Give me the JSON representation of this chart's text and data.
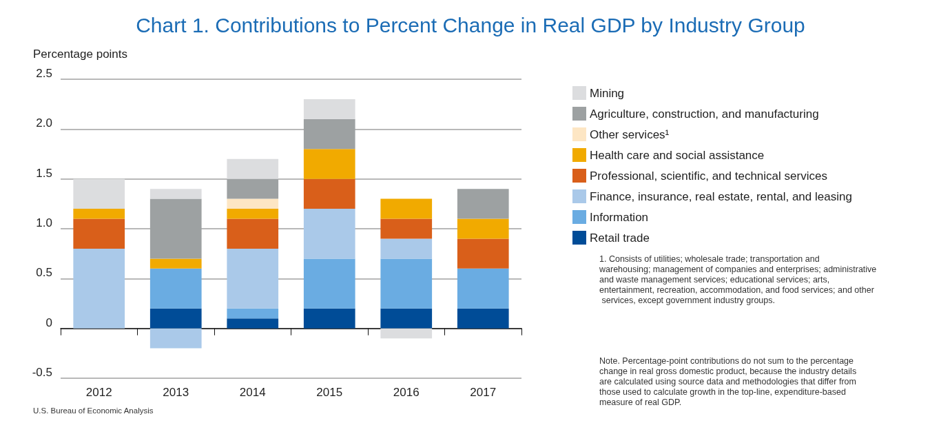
{
  "chart_data": {
    "type": "bar",
    "stacked": true,
    "title": "Chart 1. Contributions to Percent Change in Real GDP by Industry Group",
    "ylabel": "Percentage points",
    "categories": [
      "2012",
      "2013",
      "2014",
      "2015",
      "2016",
      "2017"
    ],
    "series": [
      {
        "name": "Retail trade",
        "color": "#004c97",
        "values": [
          0,
          0.2,
          0.1,
          0.2,
          0.2,
          0.2
        ]
      },
      {
        "name": "Information",
        "color": "#6aace2",
        "values": [
          0,
          0.4,
          0.1,
          0.5,
          0.5,
          0.4
        ]
      },
      {
        "name": "Finance, insurance, real estate, rental, and leasing",
        "color": "#aac9e9",
        "values": [
          0.8,
          -0.2,
          0.6,
          0.5,
          0.2,
          0
        ]
      },
      {
        "name": "Professional, scientific, and technical services",
        "color": "#d95f1a",
        "values": [
          0.3,
          0,
          0.3,
          0.3,
          0.2,
          0.3
        ]
      },
      {
        "name": "Health care and social assistance",
        "color": "#f1aa00",
        "values": [
          0.1,
          0.1,
          0.1,
          0.3,
          0.2,
          0.2
        ]
      },
      {
        "name": "Other services¹",
        "color": "#fde6c4",
        "values": [
          0,
          0,
          0.1,
          0,
          0,
          0
        ]
      },
      {
        "name": "Agriculture, construction, and manufacturing",
        "color": "#9da1a2",
        "values": [
          0,
          0.6,
          0.2,
          0.3,
          0,
          0.3
        ]
      },
      {
        "name": "Mining",
        "color": "#dcdddf",
        "values": [
          0.3,
          0.1,
          0.2,
          0.2,
          -0.1,
          0
        ]
      }
    ],
    "ylim": [
      -0.5,
      2.5
    ],
    "yticks": [
      -0.5,
      {
        "value": 0,
        "label": "0"
      },
      0.5,
      {
        "value": 1,
        "label": "1.0"
      },
      1.5,
      {
        "value": 2,
        "label": "2.0"
      },
      2.5
    ],
    "grid": "y",
    "legend": "right",
    "annotations": [
      "1. Consists of utilities; wholesale trade; transportation and warehousing; management of companies and enterprises; administrative and waste management services; educational services; arts, entertainment, recreation, accommodation, and food services; and other services, except government industry groups.",
      "Note. Percentage-point contributions do not sum to the percentage change in real gross domestic product, because the industry details are calculated using source data and methodologies that differ from those used to calculate growth in the top-line, expenditure-based measure of real GDP.",
      "U.S. Bureau of Economic Analysis"
    ]
  }
}
